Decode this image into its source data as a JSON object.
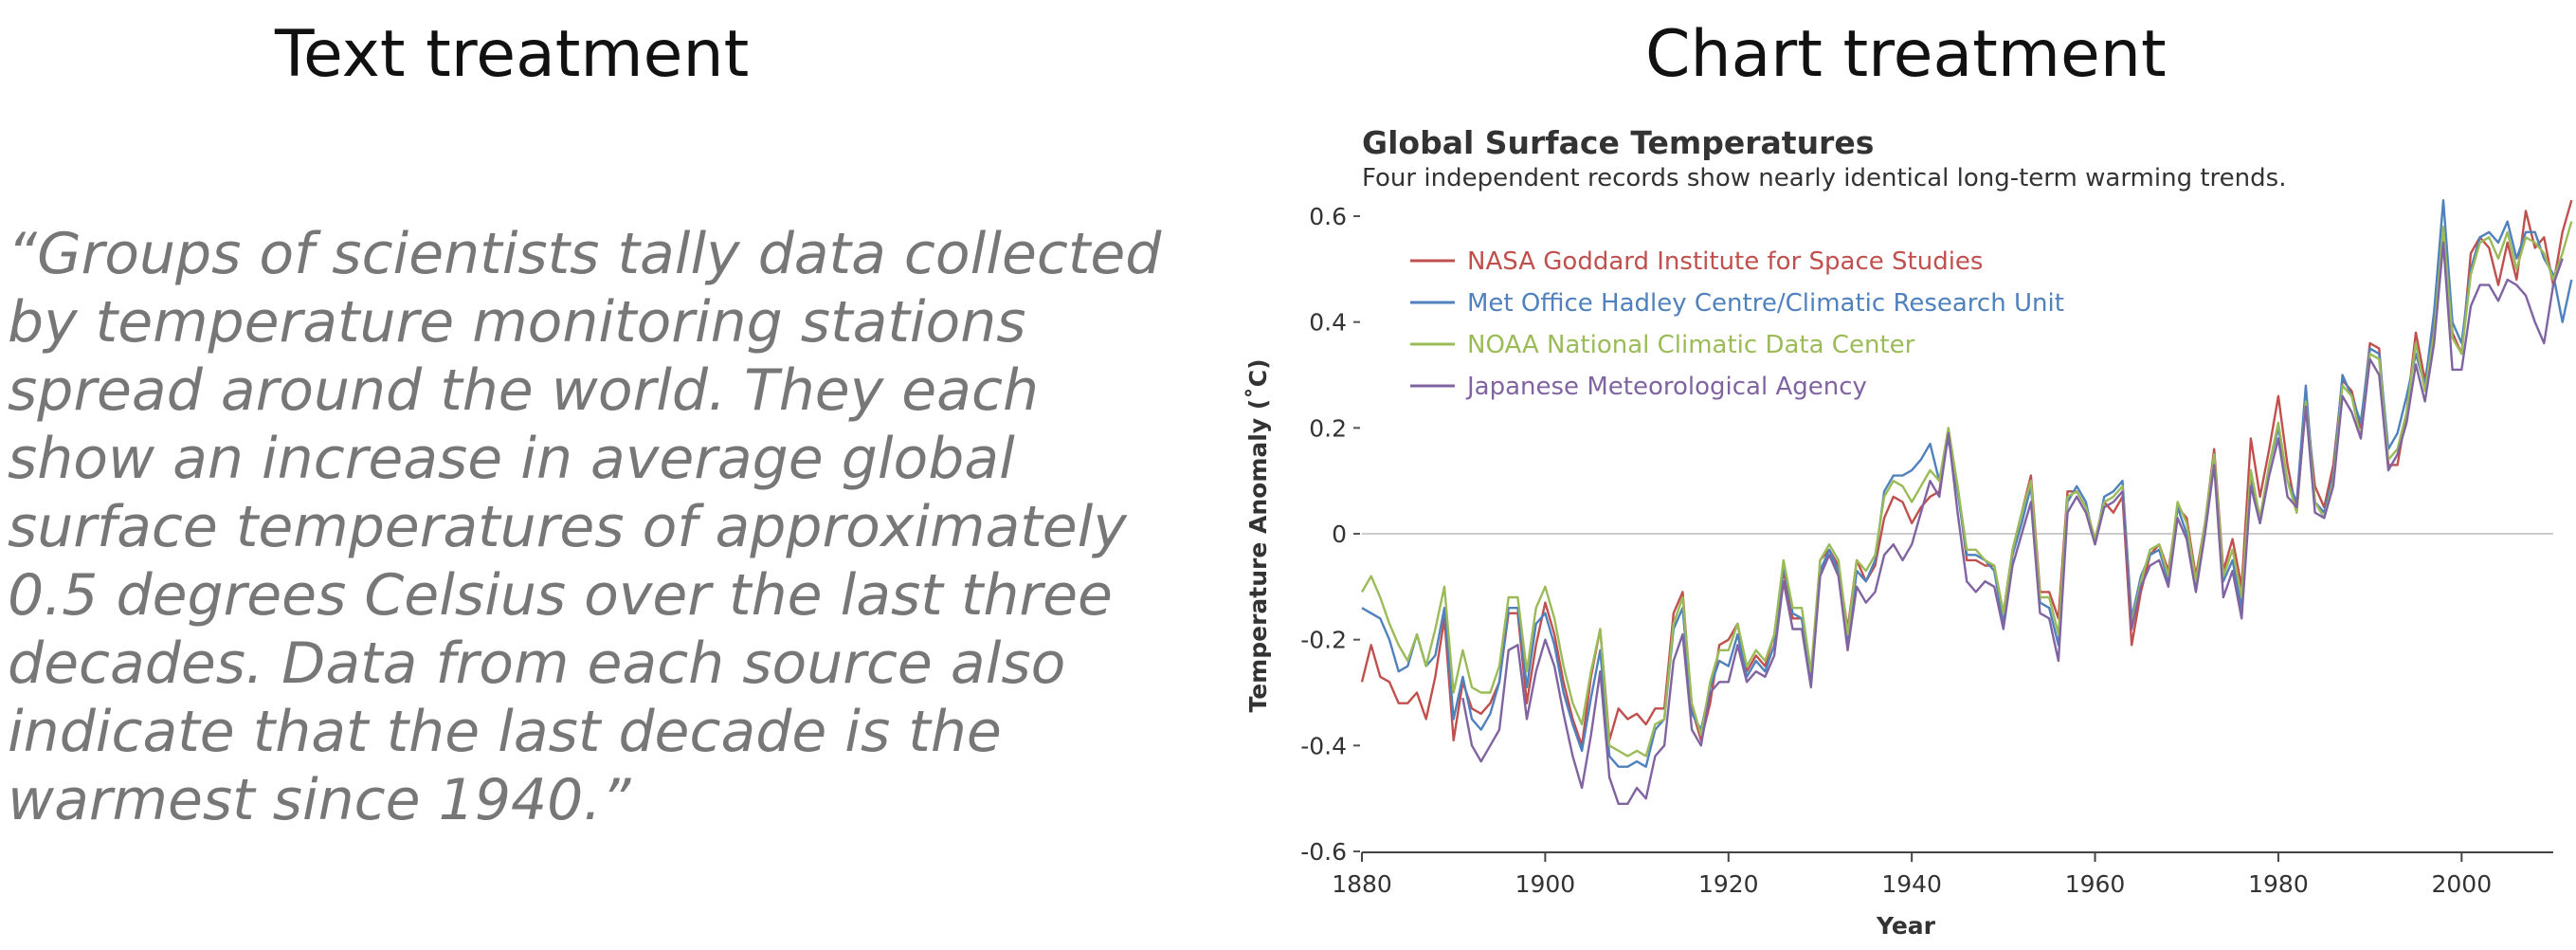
{
  "headings": {
    "left": "Text treatment",
    "right": "Chart treatment"
  },
  "quote": "“Groups of scientists tally data collected by temperature monitoring stations spread around the world. They each show an increase in average global surface temperatures of approximately 0.5 degrees Celsius over the last three decades. Data from each source also indicate that the last decade is the warmest since 1940.”",
  "chart_data": {
    "type": "line",
    "title": "Global Surface Temperatures",
    "subtitle": "Four independent records show nearly identical long-term warming trends.",
    "xlabel": "Year",
    "ylabel": "Temperature Anomaly (˚C)",
    "xlim": [
      1880,
      2010
    ],
    "ylim": [
      -0.6,
      0.6
    ],
    "x_ticks": [
      1880,
      1900,
      1920,
      1940,
      1960,
      1980,
      2000
    ],
    "y_ticks": [
      -0.6,
      -0.4,
      -0.2,
      0,
      0.2,
      0.4,
      0.6
    ],
    "y_tick_labels": [
      "-0.6",
      "-0.4",
      "-0.2",
      "0",
      "0.2",
      "0.4",
      "0.6"
    ],
    "grid": "zero line only",
    "legend_position": "top-left",
    "start_year": 1880,
    "series": [
      {
        "name": "NASA Goddard Institute for Space Studies",
        "color": "#c0504d",
        "values": [
          -0.28,
          -0.21,
          -0.27,
          -0.28,
          -0.32,
          -0.32,
          -0.3,
          -0.35,
          -0.27,
          -0.16,
          -0.39,
          -0.28,
          -0.33,
          -0.34,
          -0.32,
          -0.28,
          -0.15,
          -0.15,
          -0.32,
          -0.21,
          -0.13,
          -0.19,
          -0.28,
          -0.35,
          -0.4,
          -0.27,
          -0.18,
          -0.39,
          -0.33,
          -0.35,
          -0.34,
          -0.36,
          -0.33,
          -0.33,
          -0.15,
          -0.11,
          -0.33,
          -0.39,
          -0.32,
          -0.21,
          -0.2,
          -0.17,
          -0.26,
          -0.23,
          -0.25,
          -0.19,
          -0.07,
          -0.16,
          -0.16,
          -0.28,
          -0.05,
          -0.03,
          -0.06,
          -0.18,
          -0.05,
          -0.09,
          -0.06,
          0.03,
          0.07,
          0.06,
          0.02,
          0.05,
          0.07,
          0.08,
          0.19,
          0.09,
          -0.05,
          -0.05,
          -0.06,
          -0.06,
          -0.15,
          -0.03,
          0.04,
          0.11,
          -0.11,
          -0.11,
          -0.16,
          0.08,
          0.08,
          0.05,
          -0.01,
          0.06,
          0.04,
          0.07,
          -0.21,
          -0.11,
          -0.04,
          -0.02,
          -0.07,
          0.05,
          0.03,
          -0.08,
          0.02,
          0.16,
          -0.07,
          -0.01,
          -0.1,
          0.18,
          0.07,
          0.16,
          0.26,
          0.13,
          0.04,
          0.25,
          0.09,
          0.05,
          0.13,
          0.29,
          0.27,
          0.2,
          0.36,
          0.35,
          0.13,
          0.13,
          0.23,
          0.38,
          0.29,
          0.39,
          0.56,
          0.38,
          0.34,
          0.53,
          0.56,
          0.54,
          0.47,
          0.55,
          0.48,
          0.61,
          0.54,
          0.56,
          0.47,
          0.57,
          0.63
        ]
      },
      {
        "name": "Met Office Hadley Centre/Climatic Research Unit",
        "color": "#4f81bd",
        "values": [
          -0.14,
          -0.15,
          -0.16,
          -0.2,
          -0.26,
          -0.25,
          -0.19,
          -0.25,
          -0.23,
          -0.14,
          -0.35,
          -0.27,
          -0.35,
          -0.37,
          -0.34,
          -0.28,
          -0.14,
          -0.14,
          -0.29,
          -0.17,
          -0.15,
          -0.21,
          -0.3,
          -0.36,
          -0.41,
          -0.31,
          -0.22,
          -0.42,
          -0.44,
          -0.44,
          -0.43,
          -0.44,
          -0.37,
          -0.35,
          -0.18,
          -0.14,
          -0.34,
          -0.37,
          -0.29,
          -0.24,
          -0.25,
          -0.19,
          -0.27,
          -0.24,
          -0.26,
          -0.21,
          -0.06,
          -0.15,
          -0.16,
          -0.27,
          -0.07,
          -0.03,
          -0.07,
          -0.21,
          -0.07,
          -0.09,
          -0.05,
          0.08,
          0.11,
          0.11,
          0.12,
          0.14,
          0.17,
          0.1,
          0.18,
          0.08,
          -0.04,
          -0.04,
          -0.05,
          -0.07,
          -0.17,
          -0.04,
          0.02,
          0.09,
          -0.13,
          -0.14,
          -0.21,
          0.06,
          0.09,
          0.06,
          -0.02,
          0.07,
          0.08,
          0.1,
          -0.16,
          -0.08,
          -0.04,
          -0.03,
          -0.09,
          0.05,
          0.0,
          -0.1,
          0.02,
          0.15,
          -0.09,
          -0.05,
          -0.14,
          0.11,
          0.02,
          0.13,
          0.2,
          0.1,
          0.06,
          0.28,
          0.06,
          0.04,
          0.11,
          0.3,
          0.26,
          0.21,
          0.35,
          0.34,
          0.16,
          0.19,
          0.26,
          0.34,
          0.28,
          0.42,
          0.63,
          0.4,
          0.36,
          0.5,
          0.56,
          0.57,
          0.55,
          0.59,
          0.52,
          0.57,
          0.57,
          0.52,
          0.49,
          0.4,
          0.48
        ]
      },
      {
        "name": "NOAA National Climatic Data Center",
        "color": "#9bbb59",
        "values": [
          -0.11,
          -0.08,
          -0.12,
          -0.17,
          -0.21,
          -0.24,
          -0.19,
          -0.25,
          -0.18,
          -0.1,
          -0.3,
          -0.22,
          -0.29,
          -0.3,
          -0.3,
          -0.25,
          -0.12,
          -0.12,
          -0.26,
          -0.14,
          -0.1,
          -0.16,
          -0.25,
          -0.32,
          -0.36,
          -0.26,
          -0.18,
          -0.4,
          -0.41,
          -0.42,
          -0.41,
          -0.42,
          -0.36,
          -0.35,
          -0.17,
          -0.12,
          -0.32,
          -0.38,
          -0.28,
          -0.22,
          -0.22,
          -0.17,
          -0.25,
          -0.22,
          -0.24,
          -0.19,
          -0.05,
          -0.14,
          -0.14,
          -0.26,
          -0.05,
          -0.02,
          -0.05,
          -0.19,
          -0.05,
          -0.07,
          -0.04,
          0.07,
          0.1,
          0.09,
          0.06,
          0.09,
          0.12,
          0.1,
          0.2,
          0.09,
          -0.03,
          -0.03,
          -0.05,
          -0.06,
          -0.15,
          -0.03,
          0.04,
          0.1,
          -0.12,
          -0.12,
          -0.19,
          0.07,
          0.08,
          0.05,
          -0.01,
          0.06,
          0.07,
          0.09,
          -0.17,
          -0.09,
          -0.03,
          -0.02,
          -0.08,
          0.06,
          0.02,
          -0.09,
          0.02,
          0.15,
          -0.08,
          -0.03,
          -0.12,
          0.12,
          0.03,
          0.13,
          0.21,
          0.1,
          0.04,
          0.25,
          0.06,
          0.03,
          0.1,
          0.28,
          0.26,
          0.18,
          0.34,
          0.33,
          0.14,
          0.16,
          0.23,
          0.36,
          0.27,
          0.38,
          0.58,
          0.37,
          0.34,
          0.49,
          0.55,
          0.56,
          0.52,
          0.57,
          0.5,
          0.56,
          0.55,
          0.53,
          0.48,
          0.53,
          0.59
        ]
      },
      {
        "name": "Japanese Meteorological Agency",
        "color": "#8064a2",
        "values": [
          null,
          null,
          null,
          null,
          null,
          null,
          null,
          null,
          null,
          null,
          null,
          -0.31,
          -0.4,
          -0.43,
          -0.4,
          -0.37,
          -0.22,
          -0.21,
          -0.35,
          -0.26,
          -0.2,
          -0.25,
          -0.34,
          -0.42,
          -0.48,
          -0.38,
          -0.26,
          -0.46,
          -0.51,
          -0.51,
          -0.48,
          -0.5,
          -0.42,
          -0.4,
          -0.24,
          -0.19,
          -0.37,
          -0.4,
          -0.3,
          -0.28,
          -0.28,
          -0.21,
          -0.28,
          -0.26,
          -0.27,
          -0.23,
          -0.09,
          -0.18,
          -0.18,
          -0.29,
          -0.08,
          -0.04,
          -0.08,
          -0.22,
          -0.1,
          -0.13,
          -0.11,
          -0.04,
          -0.02,
          -0.05,
          -0.02,
          0.04,
          0.1,
          0.07,
          0.19,
          0.04,
          -0.09,
          -0.11,
          -0.09,
          -0.1,
          -0.18,
          -0.06,
          0.0,
          0.06,
          -0.15,
          -0.16,
          -0.24,
          0.04,
          0.07,
          0.04,
          -0.02,
          0.05,
          0.06,
          0.08,
          -0.18,
          -0.1,
          -0.06,
          -0.05,
          -0.1,
          0.03,
          -0.01,
          -0.11,
          0.0,
          0.13,
          -0.12,
          -0.07,
          -0.16,
          0.09,
          0.02,
          0.11,
          0.18,
          0.07,
          0.05,
          0.24,
          0.04,
          0.03,
          0.09,
          0.26,
          0.23,
          0.18,
          0.33,
          0.3,
          0.12,
          0.15,
          0.21,
          0.32,
          0.25,
          0.36,
          0.55,
          0.31,
          0.31,
          0.43,
          0.47,
          0.47,
          0.44,
          0.48,
          0.47,
          0.45,
          0.4,
          0.36,
          0.47,
          0.52
        ]
      }
    ]
  }
}
